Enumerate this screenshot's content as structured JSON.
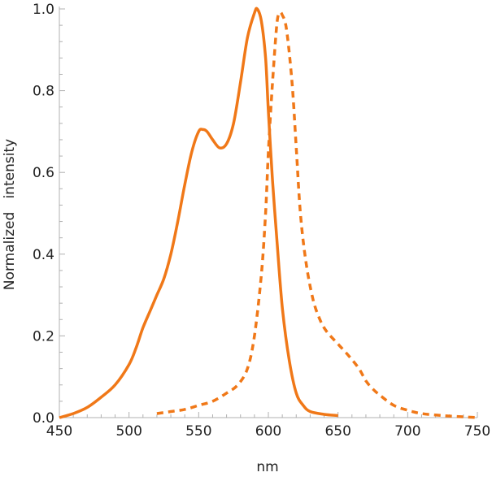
{
  "chart_data": {
    "type": "line",
    "title": "",
    "xlabel": "nm",
    "ylabel": "Normalized   intensity",
    "xlim": [
      450,
      750
    ],
    "ylim": [
      0,
      1.0
    ],
    "x_ticks": [
      450,
      500,
      550,
      600,
      650,
      700,
      750
    ],
    "x_tick_labels": [
      "450",
      "500",
      "550",
      "600",
      "650",
      "700",
      "750"
    ],
    "y_ticks": [
      0,
      0.2,
      0.4,
      0.6,
      0.8,
      1.0
    ],
    "y_tick_labels": [
      "0.0",
      "0.2",
      "0.4",
      "0.6",
      "0.8",
      "1.0"
    ],
    "grid": false,
    "legend": "none",
    "series": [
      {
        "style": "solid",
        "color": "#f07818",
        "points": [
          [
            450,
            0.0
          ],
          [
            460,
            0.01
          ],
          [
            470,
            0.025
          ],
          [
            480,
            0.05
          ],
          [
            490,
            0.08
          ],
          [
            500,
            0.13
          ],
          [
            505,
            0.17
          ],
          [
            510,
            0.22
          ],
          [
            515,
            0.26
          ],
          [
            520,
            0.3
          ],
          [
            525,
            0.34
          ],
          [
            530,
            0.4
          ],
          [
            535,
            0.48
          ],
          [
            540,
            0.57
          ],
          [
            545,
            0.65
          ],
          [
            550,
            0.7
          ],
          [
            553,
            0.705
          ],
          [
            556,
            0.7
          ],
          [
            560,
            0.68
          ],
          [
            565,
            0.66
          ],
          [
            570,
            0.67
          ],
          [
            575,
            0.72
          ],
          [
            580,
            0.82
          ],
          [
            585,
            0.93
          ],
          [
            590,
            0.99
          ],
          [
            592,
            1.0
          ],
          [
            595,
            0.97
          ],
          [
            598,
            0.88
          ],
          [
            600,
            0.75
          ],
          [
            603,
            0.58
          ],
          [
            606,
            0.44
          ],
          [
            610,
            0.27
          ],
          [
            615,
            0.14
          ],
          [
            620,
            0.06
          ],
          [
            625,
            0.03
          ],
          [
            630,
            0.015
          ],
          [
            640,
            0.008
          ],
          [
            650,
            0.005
          ]
        ]
      },
      {
        "style": "dashed",
        "color": "#f07818",
        "points": [
          [
            520,
            0.01
          ],
          [
            530,
            0.015
          ],
          [
            540,
            0.02
          ],
          [
            550,
            0.03
          ],
          [
            560,
            0.04
          ],
          [
            570,
            0.06
          ],
          [
            578,
            0.08
          ],
          [
            585,
            0.12
          ],
          [
            590,
            0.2
          ],
          [
            595,
            0.35
          ],
          [
            598,
            0.5
          ],
          [
            600,
            0.65
          ],
          [
            603,
            0.82
          ],
          [
            606,
            0.96
          ],
          [
            608,
            0.99
          ],
          [
            610,
            0.985
          ],
          [
            613,
            0.95
          ],
          [
            617,
            0.82
          ],
          [
            620,
            0.66
          ],
          [
            623,
            0.5
          ],
          [
            627,
            0.38
          ],
          [
            632,
            0.29
          ],
          [
            637,
            0.24
          ],
          [
            642,
            0.21
          ],
          [
            650,
            0.18
          ],
          [
            658,
            0.15
          ],
          [
            665,
            0.12
          ],
          [
            670,
            0.09
          ],
          [
            675,
            0.07
          ],
          [
            680,
            0.055
          ],
          [
            690,
            0.03
          ],
          [
            700,
            0.018
          ],
          [
            710,
            0.01
          ],
          [
            725,
            0.005
          ],
          [
            740,
            0.002
          ],
          [
            750,
            0.0
          ]
        ]
      }
    ]
  }
}
